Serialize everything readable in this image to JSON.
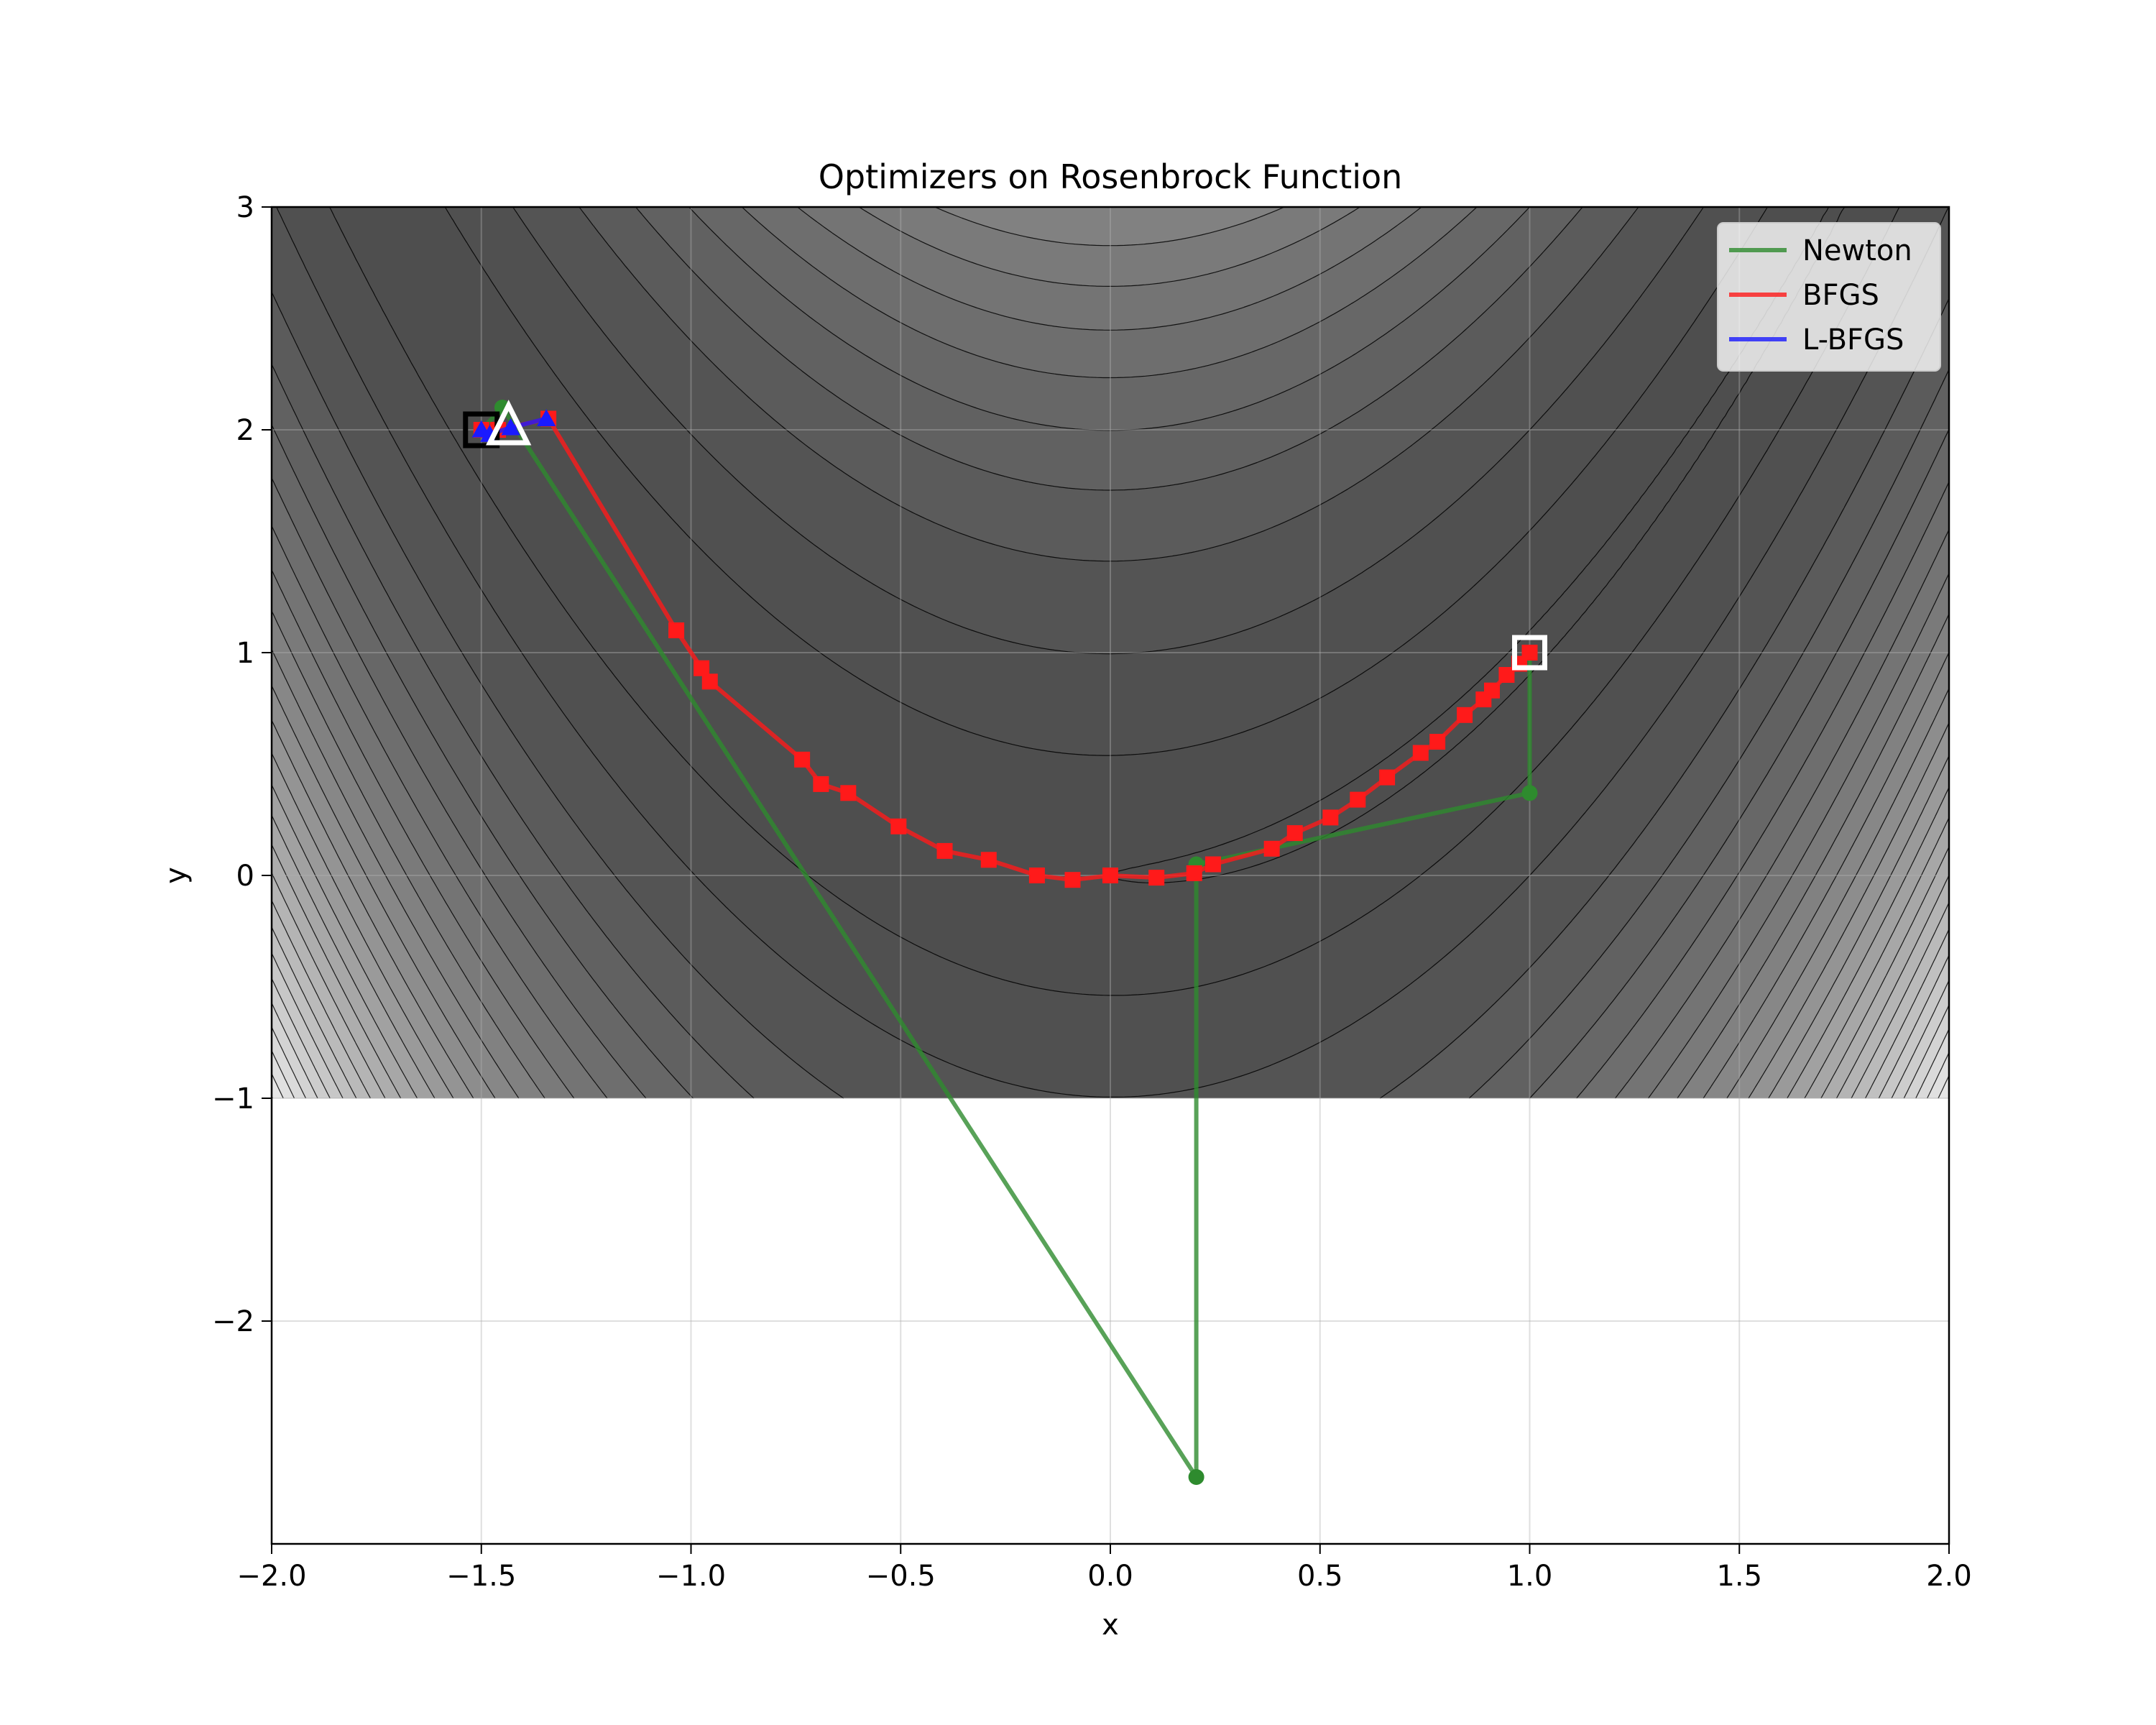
{
  "chart_data": {
    "type": "line",
    "title": "Optimizers on Rosenbrock Function",
    "xlabel": "x",
    "ylabel": "y",
    "xlim": [
      -2.0,
      2.0
    ],
    "ylim": [
      -3.0,
      3.0
    ],
    "background_contour": {
      "function": "Rosenbrock f(x,y) = (1 - x)^2 + 100 (y - x^2)^2",
      "x_range": [
        -2.0,
        2.0
      ],
      "y_range": [
        -1.0,
        3.0
      ],
      "colormap": "gray",
      "levels": [
        1,
        30,
        100,
        200,
        300,
        400,
        500,
        600,
        700,
        800,
        900,
        1000,
        1100,
        1200,
        1300,
        1400,
        1500,
        1600,
        1700,
        1800,
        1900,
        2000,
        2100,
        2200,
        2300,
        2400,
        2500
      ]
    },
    "grid": true,
    "legend_position": "top-right",
    "x_ticks": [
      "−2.0",
      "−1.5",
      "−1.0",
      "−0.5",
      "0.0",
      "0.5",
      "1.0",
      "1.5",
      "2.0"
    ],
    "x_tick_values": [
      -2.0,
      -1.5,
      -1.0,
      -0.5,
      0.0,
      0.5,
      1.0,
      1.5,
      2.0
    ],
    "y_ticks": [
      "−2",
      "−1",
      "0",
      "1",
      "2",
      "3"
    ],
    "y_tick_values": [
      -2,
      -1,
      0,
      1,
      2,
      3
    ],
    "series": [
      {
        "name": "Newton",
        "color": "#2e8b2e",
        "marker": "circle",
        "x": [
          -1.5,
          -1.45,
          0.205,
          0.205,
          1.0,
          1.0
        ],
        "y": [
          2.0,
          2.1,
          -2.7,
          0.05,
          0.37,
          1.0
        ]
      },
      {
        "name": "BFGS",
        "color": "#ff1a1a",
        "marker": "square",
        "x": [
          -1.5,
          -1.46,
          -1.34,
          -1.035,
          -0.975,
          -0.955,
          -0.735,
          -0.69,
          -0.625,
          -0.505,
          -0.395,
          -0.29,
          -0.175,
          -0.09,
          0.0,
          0.11,
          0.2,
          0.245,
          0.385,
          0.44,
          0.525,
          0.59,
          0.66,
          0.74,
          0.78,
          0.845,
          0.89,
          0.91,
          0.945,
          0.975,
          1.0
        ],
        "y": [
          2.0,
          2.0,
          2.05,
          1.1,
          0.93,
          0.87,
          0.52,
          0.41,
          0.37,
          0.22,
          0.11,
          0.07,
          0.0,
          -0.02,
          0.0,
          -0.01,
          0.01,
          0.05,
          0.12,
          0.19,
          0.26,
          0.34,
          0.44,
          0.55,
          0.6,
          0.72,
          0.79,
          0.83,
          0.9,
          0.95,
          1.0
        ]
      },
      {
        "name": "L-BFGS",
        "color": "#1a1aff",
        "marker": "triangle",
        "x": [
          -1.5,
          -1.48,
          -1.43,
          -1.345
        ],
        "y": [
          2.0,
          1.98,
          2.01,
          2.05
        ]
      }
    ],
    "start_point": {
      "x": -1.5,
      "y": 2.0
    },
    "minimum_point": {
      "x": 1.0,
      "y": 1.0
    }
  }
}
